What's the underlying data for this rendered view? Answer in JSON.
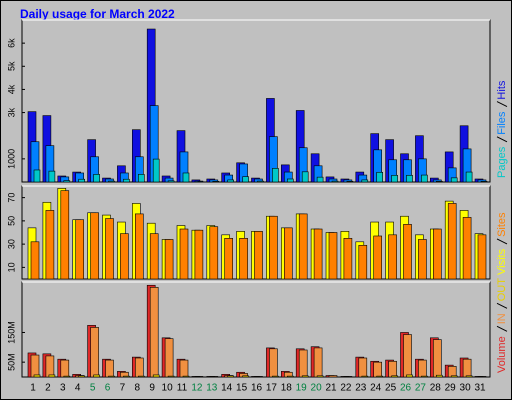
{
  "title": "Daily usage for March 2022",
  "categories": [
    "1",
    "2",
    "3",
    "4",
    "5",
    "6",
    "7",
    "8",
    "9",
    "10",
    "11",
    "12",
    "13",
    "14",
    "15",
    "16",
    "17",
    "18",
    "19",
    "20",
    "21",
    "22",
    "23",
    "24",
    "25",
    "26",
    "27",
    "28",
    "29",
    "30",
    "31"
  ],
  "category_colors": [
    "#000000",
    "#000000",
    "#000000",
    "#000000",
    "#008040",
    "#008040",
    "#000000",
    "#000000",
    "#000000",
    "#000000",
    "#000000",
    "#008040",
    "#008040",
    "#000000",
    "#000000",
    "#000000",
    "#000000",
    "#000000",
    "#008040",
    "#008040",
    "#000000",
    "#000000",
    "#000000",
    "#000000",
    "#000000",
    "#008040",
    "#008040",
    "#000000",
    "#000000",
    "#000000",
    "#000000"
  ],
  "chart_data": [
    {
      "type": "bar",
      "ylim": [
        0,
        7000
      ],
      "yticks": [
        1000,
        {
          "value": 3000,
          "label": "3k"
        },
        {
          "value": 4000,
          "label": "4k"
        },
        {
          "value": 5000,
          "label": "5k"
        },
        {
          "value": 6000,
          "label": "6k"
        }
      ],
      "series": [
        {
          "name": "Pages",
          "color": "#00c8c8",
          "values": [
            520,
            470,
            60,
            120,
            330,
            40,
            120,
            330,
            990,
            50,
            390,
            10,
            30,
            90,
            230,
            40,
            590,
            130,
            440,
            210,
            40,
            30,
            90,
            420,
            290,
            290,
            300,
            30,
            180,
            430,
            30
          ]
        },
        {
          "name": "Files",
          "color": "#0080ff",
          "values": [
            1740,
            1570,
            220,
            390,
            1090,
            130,
            390,
            1090,
            3300,
            170,
            1300,
            40,
            90,
            300,
            780,
            130,
            1960,
            430,
            1480,
            700,
            130,
            90,
            300,
            1390,
            960,
            960,
            1000,
            90,
            610,
            1430,
            90
          ]
        },
        {
          "name": "Hits",
          "color": "#1010e0",
          "values": [
            3040,
            2870,
            260,
            430,
            1830,
            170,
            700,
            2260,
            6610,
            260,
            2220,
            90,
            130,
            390,
            830,
            170,
            3610,
            740,
            3090,
            1220,
            220,
            130,
            430,
            2090,
            1830,
            1220,
            2000,
            170,
            1300,
            2430,
            130
          ]
        }
      ]
    },
    {
      "type": "bar",
      "ylim": [
        0,
        80
      ],
      "yticks": [
        10,
        30,
        50,
        70
      ],
      "series": [
        {
          "name": "Visits",
          "color": "#ffff00",
          "values": [
            44,
            66,
            78,
            51,
            57,
            55,
            49,
            65,
            48,
            34,
            46,
            42,
            46,
            38,
            41,
            41,
            54,
            44,
            56,
            43,
            40,
            41,
            32,
            49,
            49,
            54,
            38,
            43,
            67,
            59,
            39
          ]
        },
        {
          "name": "Sites",
          "color": "#ff8000",
          "values": [
            32,
            59,
            76,
            51,
            57,
            52,
            39,
            56,
            39,
            34,
            43,
            42,
            45,
            35,
            35,
            41,
            54,
            44,
            56,
            43,
            40,
            35,
            29,
            37,
            38,
            47,
            34,
            43,
            65,
            53,
            38
          ]
        }
      ]
    },
    {
      "type": "bar",
      "ylim": [
        0,
        320
      ],
      "yticks": [
        {
          "value": 50,
          "label": "50M"
        },
        {
          "value": 150,
          "label": "150M"
        }
      ],
      "series": [
        {
          "name": "Volume",
          "color": "#e02828",
          "values": [
            81,
            78,
            60,
            9,
            174,
            60,
            19,
            67,
            309,
            132,
            60,
            2,
            2,
            9,
            16,
            2,
            98,
            19,
            95,
            102,
            5,
            2,
            67,
            53,
            57,
            150,
            60,
            132,
            40,
            64,
            2
          ]
        },
        {
          "name": "IN",
          "color": "#f09040",
          "values": [
            74,
            71,
            57,
            5,
            167,
            57,
            16,
            64,
            302,
            129,
            57,
            2,
            2,
            5,
            12,
            2,
            95,
            16,
            91,
            98,
            5,
            2,
            64,
            50,
            53,
            143,
            57,
            126,
            36,
            60,
            2
          ]
        },
        {
          "name": "OUT",
          "color": "#e8d000",
          "values": [
            7,
            7,
            3,
            4,
            7,
            3,
            3,
            3,
            7,
            3,
            3,
            0,
            0,
            4,
            4,
            0,
            3,
            3,
            4,
            4,
            0,
            0,
            3,
            3,
            4,
            7,
            3,
            6,
            4,
            4,
            0
          ]
        }
      ]
    }
  ]
}
